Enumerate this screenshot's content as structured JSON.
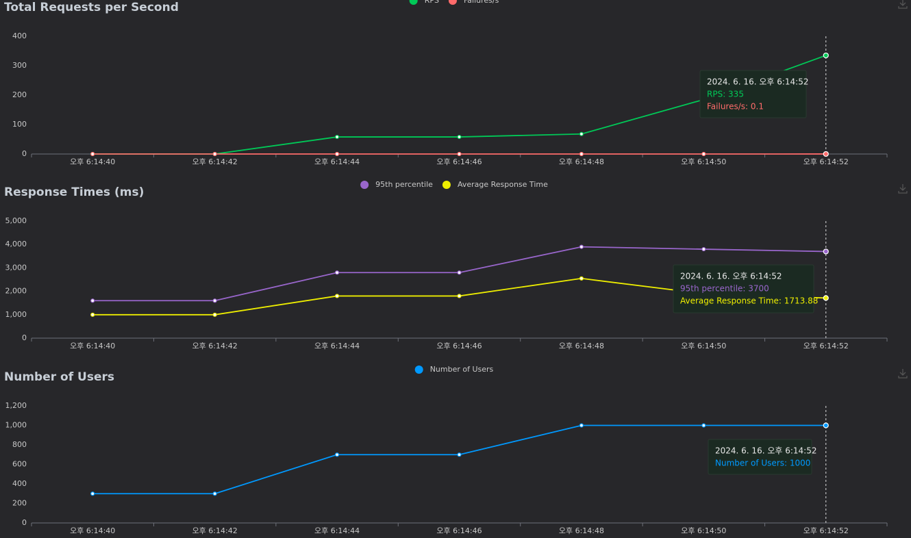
{
  "chart_data": [
    {
      "type": "line",
      "title": "Total Requests per Second",
      "categories": [
        "오후 6:14:40",
        "오후 6:14:42",
        "오후 6:14:44",
        "오후 6:14:46",
        "오후 6:14:48",
        "오후 6:14:50",
        "오후 6:14:52"
      ],
      "series": [
        {
          "name": "RPS",
          "color": "#00c957",
          "values": [
            0,
            0,
            58,
            58,
            68,
            185,
            335
          ]
        },
        {
          "name": "Failures/s",
          "color": "#ff6b6b",
          "values": [
            0,
            0,
            0,
            0,
            0,
            0,
            0.1
          ]
        }
      ],
      "ylim": [
        0,
        400
      ],
      "yticks": [
        0,
        100,
        200,
        300,
        400
      ],
      "tooltip": {
        "title": "2024. 6. 16. 오후 6:14:52",
        "lines": [
          "RPS: 335",
          "Failures/s: 0.1"
        ]
      }
    },
    {
      "type": "line",
      "title": "Response Times (ms)",
      "categories": [
        "오후 6:14:40",
        "오후 6:14:42",
        "오후 6:14:44",
        "오후 6:14:46",
        "오후 6:14:48",
        "오후 6:14:50",
        "오후 6:14:52"
      ],
      "series": [
        {
          "name": "95th percentile",
          "color": "#9966cc",
          "values": [
            1600,
            1600,
            2800,
            2800,
            3900,
            3800,
            3700
          ]
        },
        {
          "name": "Average Response Time",
          "color": "#eeee00",
          "values": [
            1000,
            1000,
            1800,
            1800,
            2550,
            1900,
            1713.88
          ]
        }
      ],
      "ylim": [
        0,
        5000
      ],
      "yticks": [
        0,
        {
          "value": 1000,
          "label": "1,000"
        },
        {
          "value": 2000,
          "label": "2,000"
        },
        {
          "value": 3000,
          "label": "3,000"
        },
        {
          "value": 4000,
          "label": "4,000"
        },
        {
          "value": 5000,
          "label": "5,000"
        }
      ],
      "tooltip": {
        "title": "2024. 6. 16. 오후 6:14:52",
        "lines": [
          "95th percentile: 3700",
          "Average Response Time: 1713.88"
        ]
      }
    },
    {
      "type": "line",
      "title": "Number of Users",
      "categories": [
        "오후 6:14:40",
        "오후 6:14:42",
        "오후 6:14:44",
        "오후 6:14:46",
        "오후 6:14:48",
        "오후 6:14:50",
        "오후 6:14:52"
      ],
      "series": [
        {
          "name": "Number of Users",
          "color": "#0099ff",
          "values": [
            300,
            300,
            700,
            700,
            1000,
            1000,
            1000
          ]
        }
      ],
      "ylim": [
        0,
        1200
      ],
      "yticks": [
        0,
        200,
        400,
        600,
        800,
        {
          "value": 1000,
          "label": "1,000"
        },
        {
          "value": 1200,
          "label": "1,200"
        }
      ],
      "tooltip": {
        "title": "2024. 6. 16. 오후 6:14:52",
        "lines": [
          "Number of Users: 1000"
        ]
      }
    }
  ]
}
